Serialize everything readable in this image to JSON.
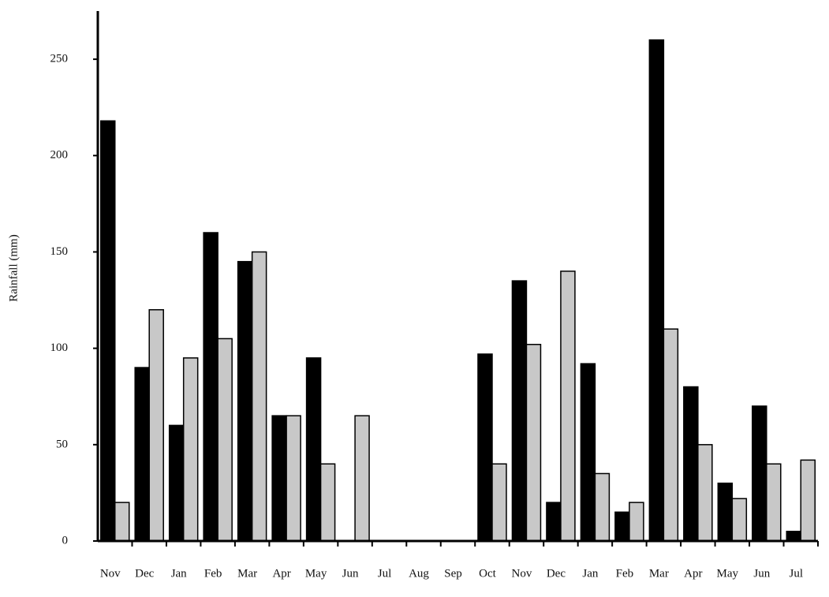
{
  "chart_data": {
    "type": "bar",
    "y_label": "Rainfall (mm)",
    "categories": [
      "Nov",
      "Dec",
      "Jan",
      "Feb",
      "Mar",
      "Apr",
      "May",
      "Jun",
      "Jul",
      "Aug",
      "Sep",
      "Oct",
      "Nov",
      "Dec",
      "Jan",
      "Feb",
      "Mar",
      "Apr",
      "May",
      "Jun",
      "Jul"
    ],
    "series": [
      {
        "color": "#000000",
        "values": [
          218,
          90,
          60,
          160,
          145,
          65,
          95,
          0,
          0,
          0,
          0,
          97,
          135,
          20,
          92,
          15,
          260,
          80,
          30,
          70,
          5
        ]
      },
      {
        "color": "#c8c8c8",
        "values": [
          20,
          120,
          95,
          105,
          150,
          65,
          40,
          65,
          0,
          0,
          0,
          40,
          102,
          140,
          35,
          20,
          110,
          50,
          22,
          40,
          42
        ]
      }
    ],
    "ylim": [
      0,
      275
    ],
    "yticks": [
      0,
      50,
      100,
      150,
      200,
      250
    ],
    "grid": false
  }
}
